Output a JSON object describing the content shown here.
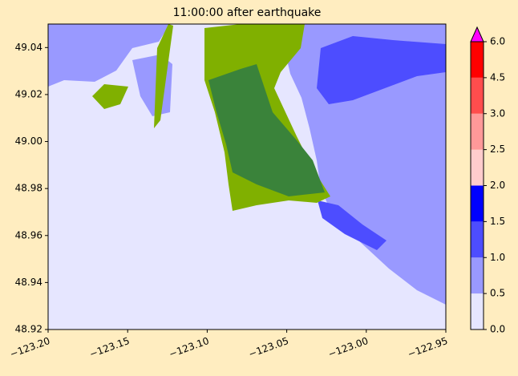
{
  "chart_data": {
    "type": "raster_map",
    "title": "11:00:00 after earthquake",
    "xlim": [
      -123.2,
      -122.95
    ],
    "ylim": [
      48.92,
      49.05
    ],
    "xticks": [
      {
        "value": -123.2,
        "label": "−123.20"
      },
      {
        "value": -123.15,
        "label": "−123.15"
      },
      {
        "value": -123.1,
        "label": "−123.10"
      },
      {
        "value": -123.05,
        "label": "−123.05"
      },
      {
        "value": -123.0,
        "label": "−123.00"
      },
      {
        "value": -122.95,
        "label": "−122.95"
      }
    ],
    "yticks": [
      48.92,
      48.94,
      48.96,
      48.98,
      {
        "value": 49.0,
        "label": "49.00"
      },
      49.02,
      49.04
    ],
    "colorbar": {
      "levels": [
        0,
        0.5,
        1,
        1.5,
        2,
        2.5,
        3,
        4.5,
        6
      ],
      "colors": [
        "#e6e6ff",
        "#9999ff",
        "#4d4dff",
        "#0000ff",
        "#ffcccc",
        "#ff9999",
        "#ff4d4d",
        "#ff0000"
      ],
      "extend_color": "#ff00ff",
      "ticks": [
        {
          "value": 0,
          "label": "0.0"
        },
        0.5,
        {
          "value": 1,
          "label": "1.0"
        },
        1.5,
        {
          "value": 2,
          "label": "2.0"
        },
        2.5,
        {
          "value": 3,
          "label": "3.0"
        },
        4.5,
        {
          "value": 6,
          "label": "6.0"
        }
      ]
    }
  }
}
